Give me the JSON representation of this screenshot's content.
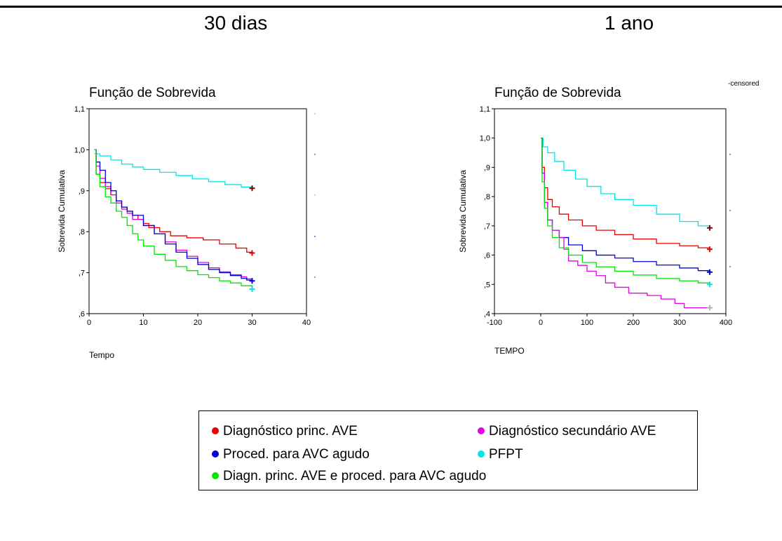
{
  "titles": {
    "left": "30 dias",
    "right": "1 ano"
  },
  "censored_label": "-censored",
  "legend_items": [
    {
      "label": "Diagnóstico princ. AVE",
      "color": "#e60000",
      "icon": "dot"
    },
    {
      "label": "Diagnóstico secundário AVE",
      "color": "#e600e6",
      "icon": "dot"
    },
    {
      "label": "Proced. para AVC agudo",
      "color": "#0000dc",
      "icon": "dot"
    },
    {
      "label": "PFPT",
      "color": "#00e6e6",
      "icon": "dot"
    },
    {
      "label": "Diagn. princ. AVE e proced. para AVC agudo",
      "color": "#00e600",
      "icon": "dot"
    }
  ],
  "chart_data": [
    {
      "type": "line",
      "step": true,
      "title": "Função de Sobrevida",
      "xlabel": "Tempo",
      "ylabel": "Sobrevida Cumulativa",
      "xlim": [
        0,
        40
      ],
      "ylim": [
        0.6,
        1.1
      ],
      "xticks": [
        0,
        10,
        20,
        30,
        40
      ],
      "yticks": [
        0.6,
        0.7,
        0.8,
        0.9,
        1.0,
        1.1
      ],
      "ytick_labels": [
        ",6",
        ",7",
        ",8",
        ",9",
        "1,0",
        "1,1"
      ],
      "series": [
        {
          "color": "#00e6e6",
          "points": [
            [
              1,
              0.99
            ],
            [
              2,
              0.985
            ],
            [
              4,
              0.975
            ],
            [
              6,
              0.965
            ],
            [
              8,
              0.958
            ],
            [
              10,
              0.952
            ],
            [
              13,
              0.945
            ],
            [
              16,
              0.937
            ],
            [
              19,
              0.929
            ],
            [
              22,
              0.922
            ],
            [
              25,
              0.915
            ],
            [
              28,
              0.909
            ],
            [
              30,
              0.906
            ]
          ]
        },
        {
          "color": "#e60000",
          "points": [
            [
              1,
              1.0
            ],
            [
              1.3,
              0.94
            ],
            [
              2,
              0.92
            ],
            [
              3,
              0.905
            ],
            [
              4,
              0.89
            ],
            [
              5,
              0.875
            ],
            [
              6,
              0.86
            ],
            [
              7,
              0.85
            ],
            [
              8,
              0.84
            ],
            [
              9,
              0.83
            ],
            [
              10,
              0.82
            ],
            [
              11,
              0.81
            ],
            [
              13,
              0.8
            ],
            [
              15,
              0.79
            ],
            [
              18,
              0.785
            ],
            [
              21,
              0.78
            ],
            [
              24,
              0.77
            ],
            [
              27,
              0.76
            ],
            [
              29,
              0.75
            ],
            [
              30,
              0.748
            ]
          ]
        },
        {
          "color": "#e600e6",
          "points": [
            [
              1,
              1.0
            ],
            [
              1.3,
              0.96
            ],
            [
              2,
              0.93
            ],
            [
              3,
              0.91
            ],
            [
              4,
              0.89
            ],
            [
              5,
              0.87
            ],
            [
              6,
              0.855
            ],
            [
              7,
              0.845
            ],
            [
              8,
              0.83
            ],
            [
              10,
              0.815
            ],
            [
              12,
              0.795
            ],
            [
              14,
              0.775
            ],
            [
              16,
              0.755
            ],
            [
              18,
              0.74
            ],
            [
              20,
              0.725
            ],
            [
              22,
              0.712
            ],
            [
              24,
              0.702
            ],
            [
              26,
              0.695
            ],
            [
              28,
              0.69
            ],
            [
              29,
              0.685
            ],
            [
              30,
              0.68
            ]
          ]
        },
        {
          "color": "#0000dc",
          "points": [
            [
              1,
              1.0
            ],
            [
              1.3,
              0.97
            ],
            [
              2,
              0.95
            ],
            [
              3,
              0.92
            ],
            [
              4,
              0.9
            ],
            [
              5,
              0.875
            ],
            [
              6,
              0.86
            ],
            [
              7,
              0.85
            ],
            [
              8,
              0.84
            ],
            [
              10,
              0.815
            ],
            [
              12,
              0.795
            ],
            [
              14,
              0.77
            ],
            [
              16,
              0.75
            ],
            [
              18,
              0.735
            ],
            [
              20,
              0.72
            ],
            [
              22,
              0.708
            ],
            [
              24,
              0.7
            ],
            [
              26,
              0.693
            ],
            [
              28,
              0.686
            ],
            [
              29,
              0.682
            ],
            [
              30,
              0.68
            ]
          ]
        },
        {
          "color": "#00e600",
          "points": [
            [
              1,
              1.0
            ],
            [
              1.3,
              0.94
            ],
            [
              2,
              0.91
            ],
            [
              3,
              0.885
            ],
            [
              4,
              0.87
            ],
            [
              5,
              0.85
            ],
            [
              6,
              0.835
            ],
            [
              7,
              0.815
            ],
            [
              8,
              0.795
            ],
            [
              9,
              0.78
            ],
            [
              10,
              0.765
            ],
            [
              12,
              0.745
            ],
            [
              14,
              0.73
            ],
            [
              16,
              0.715
            ],
            [
              18,
              0.705
            ],
            [
              20,
              0.695
            ],
            [
              22,
              0.688
            ],
            [
              24,
              0.68
            ],
            [
              26,
              0.675
            ],
            [
              28,
              0.668
            ],
            [
              30,
              0.66
            ]
          ]
        }
      ],
      "censor_marks": [
        {
          "x": 30,
          "y": 0.906,
          "color": "#800000"
        },
        {
          "x": 30,
          "y": 0.748,
          "color": "#e60000"
        },
        {
          "x": 30,
          "y": 0.68,
          "color": "#0000dc"
        },
        {
          "x": 30,
          "y": 0.66,
          "color": "#00e6e6"
        }
      ]
    },
    {
      "type": "line",
      "step": true,
      "title": "Função de Sobrevida",
      "xlabel": "TEMPO",
      "ylabel": "Sobrevida Cumulativa",
      "xlim": [
        -100,
        400
      ],
      "ylim": [
        0.4,
        1.1
      ],
      "xticks": [
        -100,
        0,
        100,
        200,
        300,
        400
      ],
      "yticks": [
        0.4,
        0.5,
        0.6,
        0.7,
        0.8,
        0.9,
        1.0,
        1.1
      ],
      "ytick_labels": [
        ",4",
        ",5",
        ",6",
        ",7",
        ",8",
        ",9",
        "1,0",
        "1,1"
      ],
      "series": [
        {
          "color": "#00e6e6",
          "points": [
            [
              0,
              1.0
            ],
            [
              5,
              0.97
            ],
            [
              15,
              0.95
            ],
            [
              30,
              0.92
            ],
            [
              50,
              0.89
            ],
            [
              75,
              0.86
            ],
            [
              100,
              0.835
            ],
            [
              130,
              0.81
            ],
            [
              160,
              0.79
            ],
            [
              200,
              0.77
            ],
            [
              250,
              0.74
            ],
            [
              300,
              0.715
            ],
            [
              340,
              0.7
            ],
            [
              365,
              0.693
            ]
          ]
        },
        {
          "color": "#e60000",
          "points": [
            [
              0,
              1.0
            ],
            [
              3,
              0.9
            ],
            [
              8,
              0.83
            ],
            [
              15,
              0.79
            ],
            [
              25,
              0.765
            ],
            [
              40,
              0.74
            ],
            [
              60,
              0.72
            ],
            [
              90,
              0.7
            ],
            [
              120,
              0.685
            ],
            [
              160,
              0.67
            ],
            [
              200,
              0.655
            ],
            [
              250,
              0.64
            ],
            [
              300,
              0.632
            ],
            [
              340,
              0.625
            ],
            [
              365,
              0.62
            ]
          ]
        },
        {
          "color": "#0000dc",
          "points": [
            [
              0,
              1.0
            ],
            [
              3,
              0.88
            ],
            [
              8,
              0.78
            ],
            [
              15,
              0.72
            ],
            [
              25,
              0.685
            ],
            [
              40,
              0.66
            ],
            [
              60,
              0.635
            ],
            [
              90,
              0.615
            ],
            [
              120,
              0.6
            ],
            [
              160,
              0.59
            ],
            [
              200,
              0.578
            ],
            [
              250,
              0.566
            ],
            [
              300,
              0.556
            ],
            [
              340,
              0.547
            ],
            [
              365,
              0.542
            ]
          ]
        },
        {
          "color": "#e600e6",
          "points": [
            [
              0,
              1.0
            ],
            [
              3,
              0.88
            ],
            [
              8,
              0.78
            ],
            [
              15,
              0.72
            ],
            [
              25,
              0.685
            ],
            [
              40,
              0.66
            ],
            [
              50,
              0.62
            ],
            [
              60,
              0.58
            ],
            [
              80,
              0.565
            ],
            [
              100,
              0.545
            ],
            [
              120,
              0.53
            ],
            [
              140,
              0.505
            ],
            [
              160,
              0.49
            ],
            [
              190,
              0.47
            ],
            [
              230,
              0.462
            ],
            [
              260,
              0.45
            ],
            [
              290,
              0.435
            ],
            [
              310,
              0.42
            ],
            [
              365,
              0.42
            ]
          ]
        },
        {
          "color": "#00e600",
          "points": [
            [
              0,
              1.0
            ],
            [
              3,
              0.85
            ],
            [
              8,
              0.76
            ],
            [
              15,
              0.7
            ],
            [
              25,
              0.66
            ],
            [
              40,
              0.625
            ],
            [
              60,
              0.6
            ],
            [
              90,
              0.575
            ],
            [
              120,
              0.56
            ],
            [
              160,
              0.545
            ],
            [
              200,
              0.532
            ],
            [
              250,
              0.52
            ],
            [
              300,
              0.512
            ],
            [
              340,
              0.505
            ],
            [
              365,
              0.5
            ]
          ]
        }
      ],
      "censor_marks": [
        {
          "x": 365,
          "y": 0.693,
          "color": "#800000"
        },
        {
          "x": 365,
          "y": 0.62,
          "color": "#e60000"
        },
        {
          "x": 365,
          "y": 0.542,
          "color": "#0000dc"
        },
        {
          "x": 365,
          "y": 0.5,
          "color": "#00e6e6"
        },
        {
          "x": 365,
          "y": 0.42,
          "color": "#b4b4b4"
        }
      ]
    }
  ]
}
